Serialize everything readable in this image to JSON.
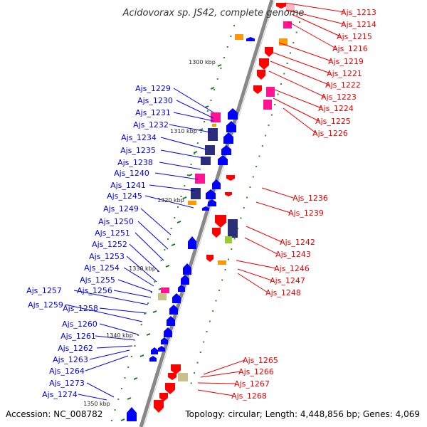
{
  "title": "Acidovorax sp. JS42, complete genome",
  "footer": {
    "accession": "Accession: NC_008782",
    "summary": "Topology: circular; Length: 4,448,856 bp; Genes: 4,069"
  },
  "colors": {
    "forward_label": "#0000ee",
    "reverse_label": "#ee0000",
    "forward_gene": "#0000ff",
    "reverse_gene": "#ff0000",
    "backbone": "#888888",
    "tick": "#1a7a1a",
    "cog_magenta": "#ff1493",
    "cog_orange": "#ff9900",
    "cog_navy": "#2b2f7a",
    "cog_khaki": "#c8c28a",
    "cog_lime": "#99cc33"
  },
  "scale_labels": [
    "1300 kbp",
    "1310 kbp",
    "1320 kbp",
    "1330 kbp",
    "1340 kbp",
    "1350 kbp"
  ],
  "forward_labels": [
    "Ajs_1229",
    "Ajs_1230",
    "Ajs_1231",
    "Ajs_1232",
    "Ajs_1234",
    "Ajs_1235",
    "Ajs_1238",
    "Ajs_1240",
    "Ajs_1241",
    "Ajs_1245",
    "Ajs_1249",
    "Ajs_1250",
    "Ajs_1251",
    "Ajs_1252",
    "Ajs_1253",
    "Ajs_1254",
    "Ajs_1255",
    "Ajs_1256",
    "Ajs_1257",
    "Ajs_1258",
    "Ajs_1259",
    "Ajs_1260",
    "Ajs_1261",
    "Ajs_1262",
    "Ajs_1263",
    "Ajs_1264",
    "Ajs_1273",
    "Ajs_1274"
  ],
  "reverse_labels": [
    "Ajs_1213",
    "Ajs_1214",
    "Ajs_1215",
    "Ajs_1216",
    "Ajs_1219",
    "Ajs_1221",
    "Ajs_1222",
    "Ajs_1223",
    "Ajs_1224",
    "Ajs_1225",
    "Ajs_1226",
    "Ajs_1236",
    "Ajs_1239",
    "Ajs_1242",
    "Ajs_1243",
    "Ajs_1246",
    "Ajs_1247",
    "Ajs_1248",
    "Ajs_1265",
    "Ajs_1266",
    "Ajs_1267",
    "Ajs_1268"
  ]
}
